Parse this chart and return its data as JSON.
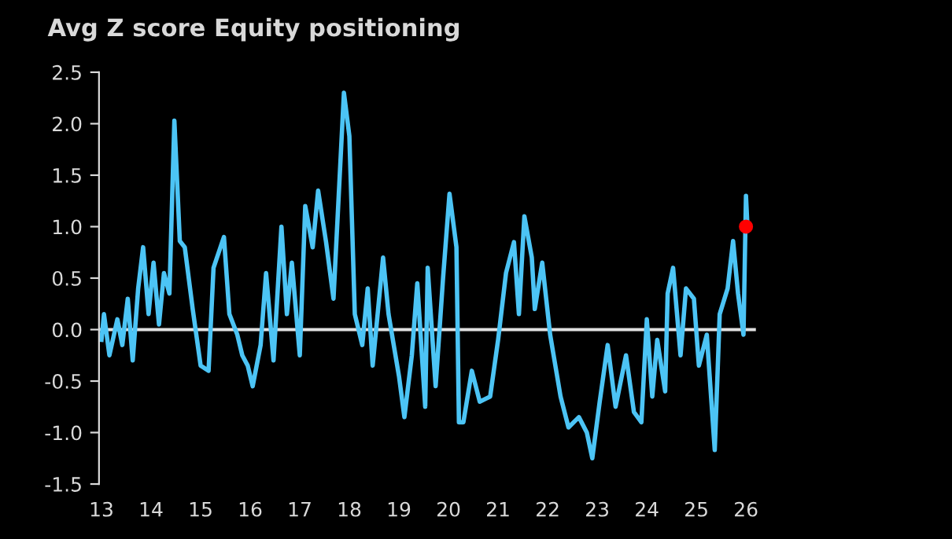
{
  "chart_data": {
    "type": "line",
    "title": "Avg Z score Equity positioning",
    "xlim": [
      12.95,
      26.2
    ],
    "ylim": [
      -1.5,
      2.5
    ],
    "xticks": [
      13,
      14,
      15,
      16,
      17,
      18,
      19,
      20,
      21,
      22,
      23,
      24,
      25,
      26
    ],
    "yticks": [
      {
        "value": -1.5,
        "label": "-1.5"
      },
      {
        "value": -1.0,
        "label": "-1.0"
      },
      {
        "value": -0.5,
        "label": "-0.5"
      },
      {
        "value": 0,
        "label": "0.0"
      },
      {
        "value": 0.5,
        "label": "0.5"
      },
      {
        "value": 1.0,
        "label": "1.0"
      },
      {
        "value": 1.5,
        "label": "1.5"
      },
      {
        "value": 2.0,
        "label": "2.0"
      },
      {
        "value": 2.5,
        "label": "2.5"
      }
    ],
    "grid": false,
    "legend": false,
    "marker": "none",
    "line_style": "solid",
    "ref_lines": [
      {
        "axis": "y",
        "value": 0,
        "color": "#e0e0e0"
      }
    ],
    "series": [
      {
        "color": "#4cc4f5",
        "x": [
          13.0,
          13.05,
          13.16,
          13.32,
          13.42,
          13.53,
          13.63,
          13.74,
          13.84,
          13.95,
          14.05,
          14.16,
          14.26,
          14.37,
          14.47,
          14.58,
          14.68,
          14.84,
          15.0,
          15.16,
          15.26,
          15.47,
          15.58,
          15.74,
          15.84,
          15.95,
          16.05,
          16.21,
          16.32,
          16.47,
          16.63,
          16.74,
          16.84,
          17.0,
          17.11,
          17.26,
          17.37,
          17.53,
          17.68,
          17.89,
          18.0,
          18.11,
          18.26,
          18.37,
          18.47,
          18.68,
          18.79,
          19.0,
          19.11,
          19.26,
          19.37,
          19.53,
          19.58,
          19.74,
          19.89,
          20.02,
          20.16,
          20.21,
          20.3,
          20.47,
          20.63,
          20.84,
          21.0,
          21.16,
          21.32,
          21.42,
          21.53,
          21.68,
          21.74,
          21.89,
          22.05,
          22.26,
          22.42,
          22.63,
          22.79,
          22.9,
          23.05,
          23.21,
          23.37,
          23.58,
          23.74,
          23.89,
          24.0,
          24.11,
          24.21,
          24.37,
          24.42,
          24.53,
          24.68,
          24.79,
          24.95,
          25.05,
          25.21,
          25.37,
          25.47,
          25.63,
          25.74,
          25.84,
          25.95,
          26.0,
          26.03
        ],
        "values": [
          -0.1,
          0.15,
          -0.25,
          0.1,
          -0.15,
          0.3,
          -0.3,
          0.4,
          0.8,
          0.15,
          0.65,
          0.05,
          0.55,
          0.35,
          2.03,
          0.86,
          0.8,
          0.2,
          -0.35,
          -0.4,
          0.6,
          0.9,
          0.15,
          -0.05,
          -0.25,
          -0.35,
          -0.55,
          -0.15,
          0.55,
          -0.3,
          1.0,
          0.15,
          0.65,
          -0.25,
          1.2,
          0.8,
          1.35,
          0.85,
          0.3,
          2.3,
          1.88,
          0.15,
          -0.15,
          0.4,
          -0.35,
          0.7,
          0.15,
          -0.45,
          -0.85,
          -0.25,
          0.45,
          -0.75,
          0.6,
          -0.55,
          0.5,
          1.32,
          0.8,
          -0.9,
          -0.9,
          -0.4,
          -0.7,
          -0.65,
          -0.1,
          0.55,
          0.85,
          0.15,
          1.1,
          0.7,
          0.2,
          0.65,
          -0.05,
          -0.65,
          -0.95,
          -0.85,
          -1.0,
          -1.25,
          -0.7,
          -0.15,
          -0.75,
          -0.25,
          -0.8,
          -0.9,
          0.1,
          -0.65,
          -0.1,
          -0.6,
          0.35,
          0.6,
          -0.25,
          0.4,
          0.3,
          -0.35,
          -0.05,
          -1.17,
          0.15,
          0.4,
          0.86,
          0.35,
          -0.05,
          1.3,
          1.0
        ]
      },
      {
        "type": "scatter",
        "marker": "circle",
        "color": "#ff0000",
        "x": [
          26.0
        ],
        "values": [
          1.0
        ]
      }
    ]
  }
}
